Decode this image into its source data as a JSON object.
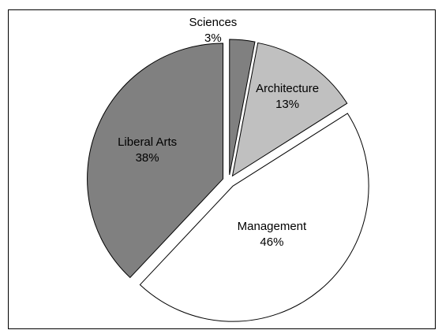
{
  "chart_data": {
    "type": "pie",
    "slices": [
      {
        "label": "Sciences",
        "value": 3,
        "value_label": "3%",
        "color": "#808080"
      },
      {
        "label": "Architecture",
        "value": 13,
        "value_label": "13%",
        "color": "#c0c0c0"
      },
      {
        "label": "Management",
        "value": 46,
        "value_label": "46%",
        "color": "#ffffff"
      },
      {
        "label": "Liberal Arts",
        "value": 38,
        "value_label": "38%",
        "color": "#808080"
      }
    ],
    "start_angle_deg": 0,
    "direction": "clockwise",
    "exploded": true,
    "legend": "none",
    "border": true
  }
}
